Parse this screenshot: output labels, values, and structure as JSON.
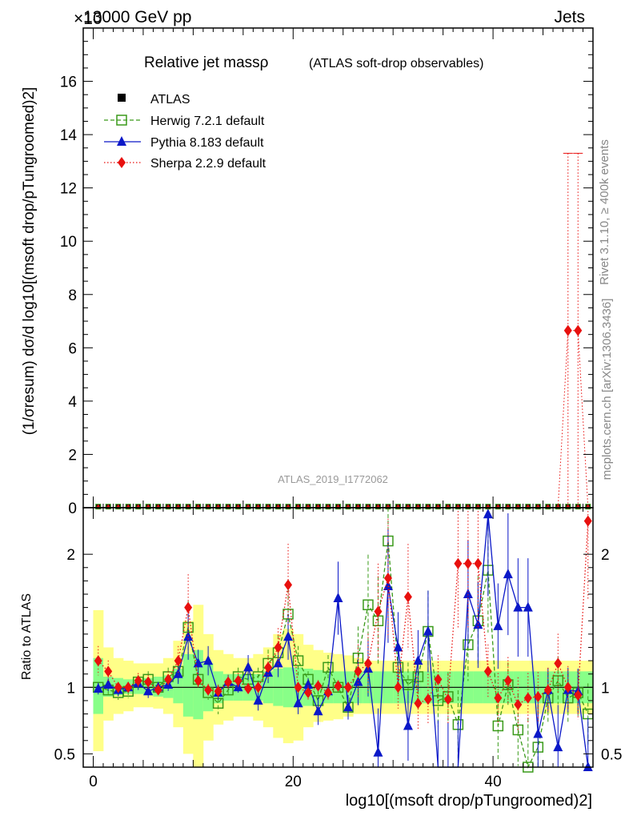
{
  "header": {
    "energy_label": "13000 GeV pp",
    "category_label": "Jets",
    "exponent_label": "×10"
  },
  "side": {
    "rivet": "Rivet 3.1.10, ≥ 400k events",
    "mcplots": "mcplots.cern.ch [arXiv:1306.3436]"
  },
  "plot_title": {
    "main": "Relative jet massρ",
    "sub": "(ATLAS soft-drop observables)"
  },
  "analysis_id": "ATLAS_2019_I1772062",
  "legend": [
    {
      "key": "atlas",
      "label": "ATLAS",
      "color": "#000000"
    },
    {
      "key": "herwig",
      "label": "Herwig 7.2.1 default",
      "color": "#3a9a1a"
    },
    {
      "key": "pythia",
      "label": "Pythia 8.183 default",
      "color": "#0b18c8"
    },
    {
      "key": "sherpa",
      "label": "Sherpa 2.2.9 default",
      "color": "#e8100e"
    }
  ],
  "axes": {
    "main_ylabel": "(1/σresum) dσ/d log10[(msoft drop/pTungroomed)2]",
    "ratio_ylabel": "Ratio to ATLAS",
    "xlabel": "log10[(msoft drop/pTungroomed)2]"
  },
  "colors": {
    "band_inner": "#88ff88",
    "band_outer": "#ffff88",
    "frame": "#000000"
  },
  "chart_data": [
    {
      "type": "line",
      "title": "Relative jet massρ (ATLAS soft-drop observables)",
      "xlabel": "log10[(msoft drop/pTungroomed)2]",
      "ylabel": "(1/σresum) dσ/d log10[(msoft drop/pTungroomed)2]",
      "xlim": [
        -1,
        50
      ],
      "ylim": [
        0,
        18
      ],
      "xticks": [
        0,
        20,
        40
      ],
      "yticks": [
        0,
        2,
        4,
        6,
        8,
        10,
        12,
        14,
        16
      ],
      "x": [
        0.5,
        1.5,
        2.5,
        3.5,
        4.5,
        5.5,
        6.5,
        7.5,
        8.5,
        9.5,
        10.5,
        11.5,
        12.5,
        13.5,
        14.5,
        15.5,
        16.5,
        17.5,
        18.5,
        19.5,
        20.5,
        21.5,
        22.5,
        23.5,
        24.5,
        25.5,
        26.5,
        27.5,
        28.5,
        29.5,
        30.5,
        31.5,
        32.5,
        33.5,
        34.5,
        35.5,
        36.5,
        37.5,
        38.5,
        39.5,
        40.5,
        41.5,
        42.5,
        43.5,
        44.5,
        45.5,
        46.5,
        47.5,
        48.5,
        49.5
      ],
      "series": [
        {
          "name": "ATLAS",
          "values": [
            0.01,
            0.01,
            0.01,
            0.01,
            0.01,
            0.01,
            0.01,
            0.01,
            0.01,
            0.01,
            0.01,
            0.01,
            0.01,
            0.01,
            0.01,
            0.01,
            0.01,
            0.01,
            0.01,
            0.01,
            0.01,
            0.01,
            0.01,
            0.01,
            0.01,
            0.01,
            0.01,
            0.01,
            0.01,
            0.01,
            0.01,
            0.01,
            0.01,
            0.01,
            0.01,
            0.01,
            0.01,
            0.01,
            0.01,
            0.01,
            0.01,
            0.01,
            0.01,
            0.01,
            0.01,
            0.01,
            0.01,
            0.01,
            0.01,
            0.01
          ]
        },
        {
          "name": "Herwig 7.2.1 default",
          "values": [
            0.01,
            0.01,
            0.01,
            0.01,
            0.01,
            0.01,
            0.01,
            0.01,
            0.01,
            0.01,
            0.01,
            0.01,
            0.01,
            0.01,
            0.01,
            0.01,
            0.01,
            0.01,
            0.01,
            0.01,
            0.01,
            0.01,
            0.01,
            0.01,
            0.01,
            0.01,
            0.01,
            0.01,
            0.01,
            0.01,
            0.01,
            0.01,
            0.01,
            0.01,
            0.01,
            0.01,
            0.01,
            0.01,
            0.01,
            0.01,
            0.01,
            0.01,
            0.01,
            0.01,
            0.01,
            0.01,
            0.01,
            0.01,
            0.01,
            0.01
          ]
        },
        {
          "name": "Pythia 8.183 default",
          "values": [
            0.01,
            0.01,
            0.01,
            0.01,
            0.01,
            0.01,
            0.01,
            0.01,
            0.01,
            0.01,
            0.01,
            0.01,
            0.01,
            0.01,
            0.01,
            0.01,
            0.01,
            0.01,
            0.01,
            0.01,
            0.01,
            0.01,
            0.01,
            0.01,
            0.01,
            0.01,
            0.01,
            0.01,
            0.01,
            0.01,
            0.01,
            0.01,
            0.01,
            0.01,
            0.01,
            0.01,
            0.01,
            0.01,
            0.01,
            0.01,
            0.01,
            0.01,
            0.01,
            0.01,
            0.01,
            0.01,
            0.01,
            0.01,
            0.01,
            0.01
          ]
        },
        {
          "name": "Sherpa 2.2.9 default",
          "values": [
            0.01,
            0.01,
            0.01,
            0.01,
            0.01,
            0.01,
            0.01,
            0.01,
            0.01,
            0.01,
            0.01,
            0.01,
            0.01,
            0.01,
            0.01,
            0.01,
            0.01,
            0.01,
            0.01,
            0.01,
            0.01,
            0.01,
            0.01,
            0.01,
            0.01,
            0.01,
            0.01,
            0.01,
            0.01,
            0.01,
            0.01,
            0.01,
            0.01,
            0.01,
            0.01,
            0.01,
            0.01,
            0.01,
            0.01,
            0.01,
            0.01,
            0.01,
            0.01,
            0.01,
            0.01,
            0.01,
            0.01,
            0.01,
            0.01,
            0.01
          ]
        }
      ],
      "sherpa_spikes": [
        {
          "x": 47.5,
          "value": 6.65,
          "err_up": 13.3
        },
        {
          "x": 48.5,
          "value": 6.65,
          "err_up": 13.3
        }
      ]
    },
    {
      "type": "line",
      "title": "Ratio to ATLAS",
      "xlabel": "log10[(msoft drop/pTungroomed)2]",
      "ylabel": "Ratio to ATLAS",
      "xlim": [
        -1,
        50
      ],
      "ylim": [
        0.4,
        2.35
      ],
      "yticks": [
        0.5,
        1,
        2
      ],
      "x": [
        0.5,
        1.5,
        2.5,
        3.5,
        4.5,
        5.5,
        6.5,
        7.5,
        8.5,
        9.5,
        10.5,
        11.5,
        12.5,
        13.5,
        14.5,
        15.5,
        16.5,
        17.5,
        18.5,
        19.5,
        20.5,
        21.5,
        22.5,
        23.5,
        24.5,
        25.5,
        26.5,
        27.5,
        28.5,
        29.5,
        30.5,
        31.5,
        32.5,
        33.5,
        34.5,
        35.5,
        36.5,
        37.5,
        38.5,
        39.5,
        40.5,
        41.5,
        42.5,
        43.5,
        44.5,
        45.5,
        46.5,
        47.5,
        48.5,
        49.5
      ],
      "bands": {
        "inner": [
          [
            0.8,
            1.22
          ],
          [
            0.93,
            1.08
          ],
          [
            0.94,
            1.07
          ],
          [
            0.95,
            1.06
          ],
          [
            0.95,
            1.06
          ],
          [
            0.94,
            1.07
          ],
          [
            0.93,
            1.08
          ],
          [
            0.92,
            1.09
          ],
          [
            0.88,
            1.14
          ],
          [
            0.78,
            1.25
          ],
          [
            0.76,
            1.28
          ],
          [
            0.82,
            1.18
          ],
          [
            0.88,
            1.12
          ],
          [
            0.9,
            1.1
          ],
          [
            0.9,
            1.1
          ],
          [
            0.9,
            1.1
          ],
          [
            0.9,
            1.1
          ],
          [
            0.88,
            1.12
          ],
          [
            0.86,
            1.14
          ],
          [
            0.85,
            1.15
          ],
          [
            0.85,
            1.15
          ],
          [
            0.86,
            1.14
          ],
          [
            0.87,
            1.13
          ],
          [
            0.88,
            1.12
          ],
          [
            0.88,
            1.12
          ],
          [
            0.88,
            1.12
          ],
          [
            0.88,
            1.12
          ],
          [
            0.88,
            1.12
          ],
          [
            0.88,
            1.12
          ],
          [
            0.88,
            1.12
          ],
          [
            0.88,
            1.12
          ],
          [
            0.88,
            1.12
          ],
          [
            0.88,
            1.12
          ],
          [
            0.88,
            1.12
          ],
          [
            0.88,
            1.12
          ],
          [
            0.88,
            1.12
          ],
          [
            0.88,
            1.12
          ],
          [
            0.88,
            1.12
          ],
          [
            0.88,
            1.12
          ],
          [
            0.88,
            1.12
          ],
          [
            0.88,
            1.12
          ],
          [
            0.88,
            1.12
          ],
          [
            0.88,
            1.12
          ],
          [
            0.88,
            1.12
          ],
          [
            0.88,
            1.12
          ],
          [
            0.88,
            1.12
          ],
          [
            0.88,
            1.12
          ],
          [
            0.88,
            1.12
          ],
          [
            0.88,
            1.12
          ],
          [
            0.88,
            1.12
          ]
        ],
        "outer": [
          [
            0.52,
            1.58
          ],
          [
            0.75,
            1.3
          ],
          [
            0.8,
            1.22
          ],
          [
            0.82,
            1.2
          ],
          [
            0.85,
            1.18
          ],
          [
            0.85,
            1.18
          ],
          [
            0.84,
            1.18
          ],
          [
            0.8,
            1.22
          ],
          [
            0.7,
            1.35
          ],
          [
            0.5,
            1.5
          ],
          [
            0.38,
            1.62
          ],
          [
            0.6,
            1.4
          ],
          [
            0.72,
            1.28
          ],
          [
            0.75,
            1.25
          ],
          [
            0.78,
            1.22
          ],
          [
            0.78,
            1.22
          ],
          [
            0.75,
            1.25
          ],
          [
            0.7,
            1.3
          ],
          [
            0.62,
            1.4
          ],
          [
            0.58,
            1.44
          ],
          [
            0.6,
            1.4
          ],
          [
            0.7,
            1.32
          ],
          [
            0.74,
            1.28
          ],
          [
            0.75,
            1.26
          ],
          [
            0.76,
            1.25
          ],
          [
            0.78,
            1.24
          ],
          [
            0.8,
            1.22
          ],
          [
            0.8,
            1.2
          ],
          [
            0.8,
            1.2
          ],
          [
            0.8,
            1.2
          ],
          [
            0.8,
            1.2
          ],
          [
            0.8,
            1.2
          ],
          [
            0.8,
            1.2
          ],
          [
            0.8,
            1.2
          ],
          [
            0.8,
            1.2
          ],
          [
            0.8,
            1.2
          ],
          [
            0.8,
            1.2
          ],
          [
            0.8,
            1.2
          ],
          [
            0.8,
            1.2
          ],
          [
            0.8,
            1.2
          ],
          [
            0.8,
            1.2
          ],
          [
            0.8,
            1.2
          ],
          [
            0.8,
            1.2
          ],
          [
            0.8,
            1.2
          ],
          [
            0.8,
            1.2
          ],
          [
            0.8,
            1.2
          ],
          [
            0.8,
            1.2
          ],
          [
            0.8,
            1.2
          ],
          [
            0.8,
            1.2
          ],
          [
            0.8,
            1.2
          ]
        ]
      },
      "series": [
        {
          "name": "Herwig 7.2.1 default",
          "values": [
            1.0,
            0.98,
            0.96,
            0.97,
            1.04,
            1.06,
            1.0,
            1.08,
            1.12,
            1.45,
            1.06,
            0.96,
            0.88,
            0.98,
            1.08,
            1.06,
            1.08,
            1.18,
            1.26,
            1.55,
            1.2,
            1.06,
            0.9,
            1.15,
            1.0,
            0.85,
            1.22,
            1.62,
            1.5,
            2.1,
            1.15,
            1.02,
            1.08,
            1.42,
            0.9,
            0.93,
            0.72,
            1.32,
            1.5,
            1.88,
            0.71,
            1.02,
            0.68,
            0.4,
            0.55,
            0.92,
            1.05,
            0.92,
            0.96,
            0.8
          ]
        },
        {
          "name": "Pythia 8.183 default",
          "values": [
            0.99,
            1.02,
            0.98,
            1.0,
            1.03,
            0.97,
            1.0,
            1.02,
            1.1,
            1.38,
            1.18,
            1.2,
            0.96,
            1.04,
            1.0,
            1.15,
            0.9,
            1.11,
            1.18,
            1.38,
            0.88,
            1.02,
            0.82,
            0.97,
            1.67,
            0.85,
            1.04,
            1.14,
            0.51,
            1.76,
            1.3,
            0.71,
            1.2,
            1.42,
            0.37,
            0.35,
            0.37,
            1.7,
            1.47,
            2.3,
            1.46,
            1.85,
            1.6,
            1.6,
            0.65,
            0.98,
            0.55,
            0.98,
            0.97,
            0.4
          ]
        },
        {
          "name": "Sherpa 2.2.9 default",
          "values": [
            1.2,
            1.12,
            1.0,
            1.0,
            1.05,
            1.04,
            0.98,
            1.06,
            1.2,
            1.6,
            1.05,
            0.98,
            0.97,
            1.04,
            1.05,
            0.99,
            1.0,
            1.15,
            1.3,
            1.77,
            1.0,
            0.96,
            1.01,
            0.96,
            1.01,
            1.0,
            1.12,
            1.18,
            1.57,
            1.82,
            1.0,
            1.68,
            0.88,
            0.91,
            1.06,
            0.91,
            1.93,
            1.93,
            1.93,
            1.12,
            0.92,
            1.05,
            0.87,
            0.92,
            0.93,
            0.98,
            1.18,
            1.0,
            0.94,
            2.25
          ]
        }
      ]
    }
  ]
}
